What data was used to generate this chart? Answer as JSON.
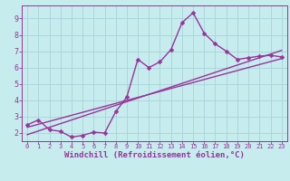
{
  "xlabel": "Windchill (Refroidissement éolien,°C)",
  "bg_color": "#c6ecee",
  "grid_color": "#a8d4d8",
  "line_color": "#993399",
  "line_width": 1.0,
  "marker": "D",
  "marker_size": 2.5,
  "xlim": [
    -0.5,
    23.5
  ],
  "ylim": [
    1.5,
    9.8
  ],
  "xticks": [
    0,
    1,
    2,
    3,
    4,
    5,
    6,
    7,
    8,
    9,
    10,
    11,
    12,
    13,
    14,
    15,
    16,
    17,
    18,
    19,
    20,
    21,
    22,
    23
  ],
  "yticks": [
    2,
    3,
    4,
    5,
    6,
    7,
    8,
    9
  ],
  "data_x": [
    0,
    1,
    2,
    3,
    4,
    5,
    6,
    7,
    8,
    9,
    10,
    11,
    12,
    13,
    14,
    15,
    16,
    17,
    18,
    19,
    20,
    21,
    22,
    23
  ],
  "data_y": [
    2.5,
    2.8,
    2.2,
    2.1,
    1.75,
    1.85,
    2.05,
    2.0,
    3.3,
    4.2,
    6.5,
    6.0,
    6.35,
    7.1,
    8.75,
    9.35,
    8.1,
    7.45,
    7.0,
    6.5,
    6.6,
    6.7,
    6.75,
    6.65
  ],
  "trend1_x": [
    0,
    23
  ],
  "trend1_y": [
    2.35,
    6.55
  ],
  "trend2_x": [
    0,
    23
  ],
  "trend2_y": [
    1.9,
    7.05
  ],
  "spine_color": "#993399",
  "tick_color": "#993399",
  "xlabel_color": "#993399",
  "tick_fontsize": 5.0,
  "ytick_fontsize": 6.0,
  "xlabel_fontsize": 6.5
}
